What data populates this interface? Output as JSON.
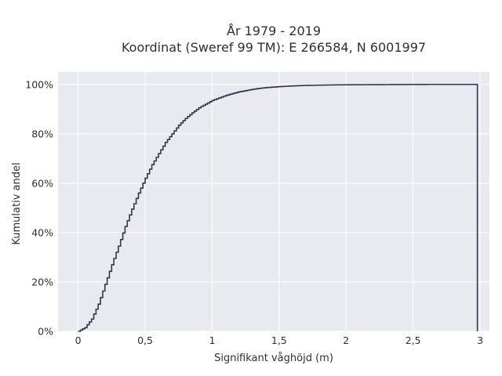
{
  "chart_data": {
    "type": "line",
    "title_lines": [
      "År 1979 - 2019",
      "Koordinat (Sweref 99 TM): E 266584, N 6001997"
    ],
    "xlabel": "Signifikant våghöjd (m)",
    "ylabel": "Kumulativ andel",
    "xlim": [
      -0.15,
      3.07
    ],
    "ylim": [
      0,
      1.05
    ],
    "x_ticks": [
      {
        "value": 0,
        "label": "0"
      },
      {
        "value": 0.5,
        "label": "0,5"
      },
      {
        "value": 1,
        "label": "1"
      },
      {
        "value": 1.5,
        "label": "1,5"
      },
      {
        "value": 2,
        "label": "2"
      },
      {
        "value": 2.5,
        "label": "2,5"
      },
      {
        "value": 3,
        "label": "3"
      }
    ],
    "y_ticks": [
      {
        "value": 0,
        "label": "0%"
      },
      {
        "value": 0.2,
        "label": "20%"
      },
      {
        "value": 0.4,
        "label": "40%"
      },
      {
        "value": 0.6,
        "label": "60%"
      },
      {
        "value": 0.8,
        "label": "80%"
      },
      {
        "value": 1.0,
        "label": "100%"
      }
    ],
    "grid": true,
    "background": "#e9e9f0",
    "line_color": "#2d3a4a",
    "step": true,
    "x": [
      0,
      0.05,
      0.1,
      0.15,
      0.2,
      0.25,
      0.3,
      0.35,
      0.4,
      0.45,
      0.5,
      0.55,
      0.6,
      0.65,
      0.7,
      0.75,
      0.8,
      0.85,
      0.9,
      0.95,
      1.0,
      1.05,
      1.1,
      1.15,
      1.2,
      1.25,
      1.3,
      1.35,
      1.4,
      1.45,
      1.5,
      1.6,
      1.7,
      1.8,
      1.9,
      2.0,
      2.2,
      2.4,
      2.6,
      2.8,
      2.98,
      2.98
    ],
    "y": [
      0,
      0.015,
      0.05,
      0.11,
      0.19,
      0.27,
      0.345,
      0.425,
      0.495,
      0.56,
      0.62,
      0.675,
      0.72,
      0.765,
      0.8,
      0.835,
      0.862,
      0.885,
      0.905,
      0.92,
      0.935,
      0.945,
      0.955,
      0.963,
      0.97,
      0.975,
      0.98,
      0.984,
      0.987,
      0.989,
      0.991,
      0.994,
      0.996,
      0.997,
      0.998,
      0.9985,
      0.999,
      0.9995,
      1.0,
      1.0,
      1.0,
      0
    ]
  }
}
